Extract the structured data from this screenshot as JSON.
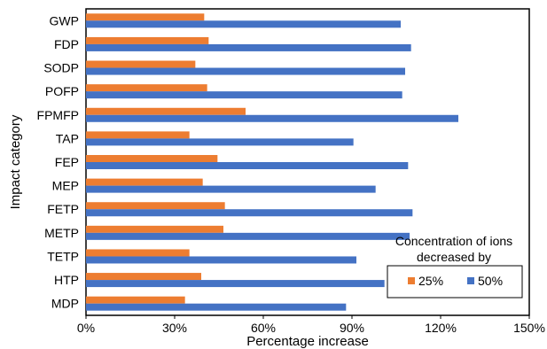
{
  "chart_data": {
    "type": "bar",
    "orientation": "horizontal",
    "categories": [
      "GWP",
      "FDP",
      "SODP",
      "POFP",
      "FPMFP",
      "TAP",
      "FEP",
      "MEP",
      "FETP",
      "METP",
      "TETP",
      "HTP",
      "MDP"
    ],
    "series": [
      {
        "name": "25%",
        "color": "#ED7D31",
        "values": [
          0.4,
          0.415,
          0.37,
          0.41,
          0.54,
          0.35,
          0.445,
          0.395,
          0.47,
          0.465,
          0.35,
          0.39,
          0.335
        ]
      },
      {
        "name": "50%",
        "color": "#4472C4",
        "values": [
          1.065,
          1.1,
          1.08,
          1.07,
          1.26,
          0.905,
          1.09,
          0.98,
          1.105,
          1.095,
          0.915,
          1.01,
          0.88
        ]
      }
    ],
    "xlabel": "Percentage increase",
    "ylabel": "Impact category",
    "xlim": [
      0,
      1.5
    ],
    "xticks": [
      "0%",
      "30%",
      "60%",
      "90%",
      "120%",
      "150%"
    ],
    "grid": false,
    "legend": {
      "title_line1": "Concentration of ions",
      "title_line2": "decreased by",
      "placement": "bottom-right"
    }
  }
}
